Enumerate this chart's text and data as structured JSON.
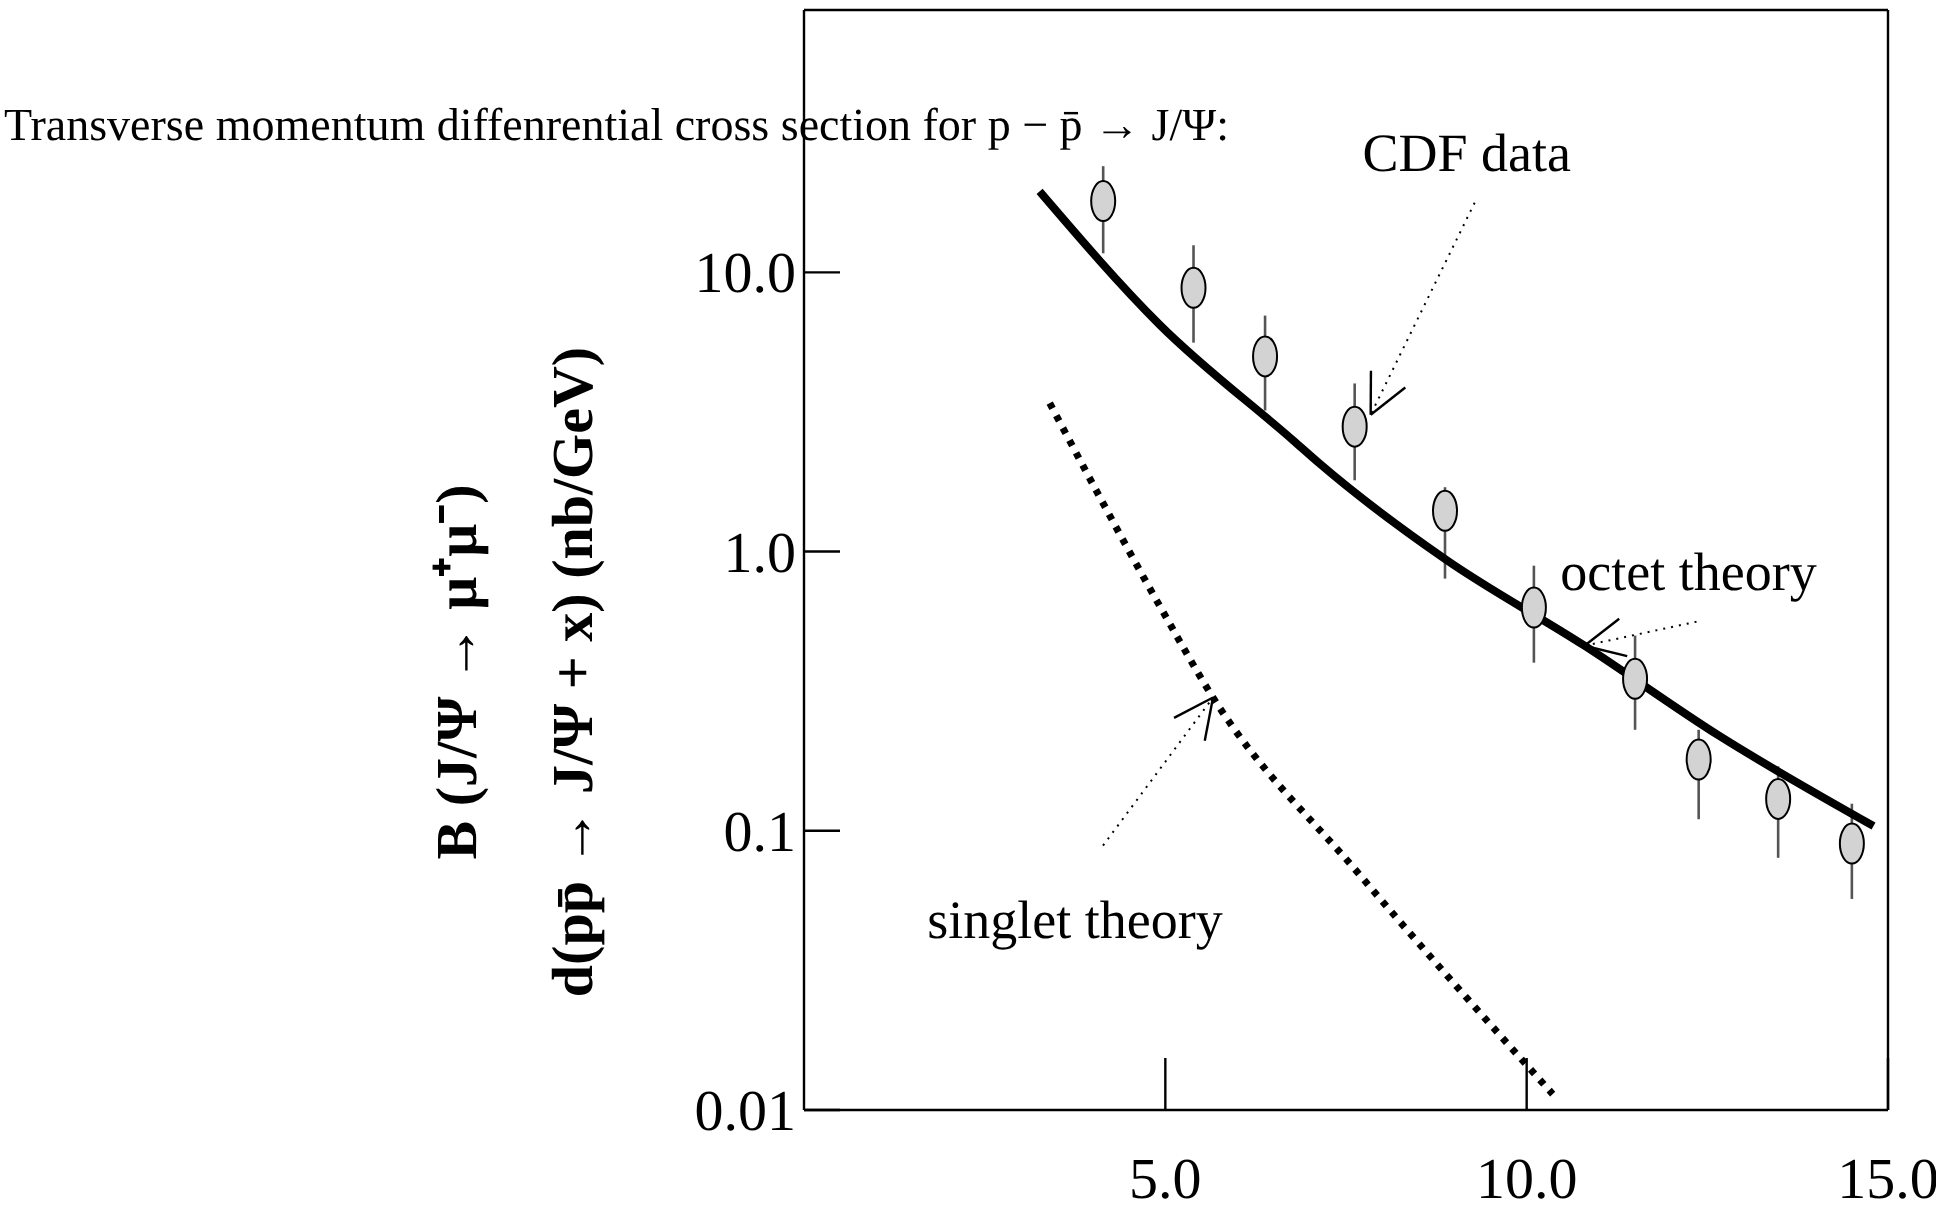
{
  "chart_data": {
    "type": "scatter",
    "title": "Transverse momentum diffenrential cross section for p − p̄ → J/Ψ:",
    "ylabel": "B (J/Ψ → μ⁺μ⁻)\nd(pp̄ → J/Ψ + x) (nb/GeV)",
    "log": "y",
    "xlim": [
      0,
      15
    ],
    "xticks": [
      {
        "value": 5,
        "label": "5.0"
      },
      {
        "value": 10,
        "label": "10.0"
      },
      {
        "value": 15,
        "label": "15.0"
      }
    ],
    "ylim": [
      0.01,
      87
    ],
    "yticks": [
      0.01,
      0.1,
      {
        "value": 1,
        "label": "1.0"
      },
      {
        "value": 10,
        "label": "10.0"
      }
    ],
    "series": [
      {
        "name": "CDF data",
        "color": "#d3d3d3",
        "marker": "circle",
        "x": [
          4.14,
          5.39,
          6.38,
          7.62,
          8.87,
          10.1,
          11.5,
          12.38,
          13.48,
          14.5
        ],
        "values": [
          18,
          8.8,
          5.0,
          2.8,
          1.4,
          0.63,
          0.35,
          0.18,
          0.13,
          0.09
        ],
        "errors": [
          [
            11.7,
            24
          ],
          [
            5.6,
            12.5
          ],
          [
            3.2,
            7
          ],
          [
            1.8,
            4
          ],
          [
            0.8,
            1.7
          ],
          [
            0.4,
            0.89
          ],
          [
            0.23,
            0.5
          ],
          [
            0.11,
            0.23
          ],
          [
            0.08,
            0.17
          ],
          [
            0.057,
            0.125
          ]
        ]
      },
      {
        "name": "octet theory",
        "type": "line",
        "color": "#000000",
        "line_style": "solid",
        "x": [
          3.26,
          4.92,
          6.77,
          7.13,
          8.87,
          10.8,
          12.65,
          14.8
        ],
        "values": [
          19.5,
          6.5,
          2.5,
          2.07,
          0.94,
          0.46,
          0.22,
          0.104
        ]
      },
      {
        "name": "singlet theory",
        "type": "line",
        "color": "#000000",
        "line_style": "dotted",
        "x": [
          3.4,
          4.92,
          5.66,
          7.68,
          10.36
        ],
        "values": [
          3.4,
          0.64,
          0.3,
          0.07,
          0.0114
        ]
      }
    ]
  }
}
